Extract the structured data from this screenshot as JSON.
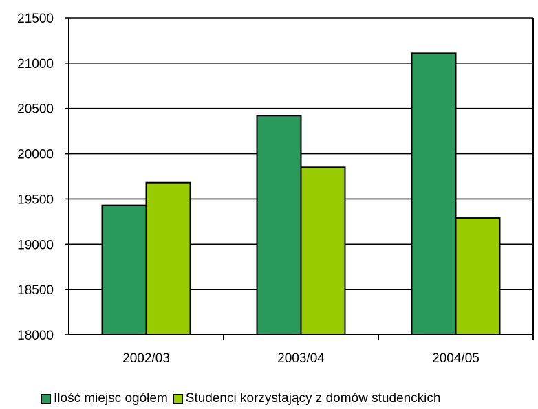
{
  "chart_data": {
    "type": "bar",
    "categories": [
      "2002/03",
      "2003/04",
      "2004/05"
    ],
    "series": [
      {
        "name": "Ilość miejsc ogółem",
        "values": [
          19430,
          20420,
          21110
        ],
        "color": "#2a9a5c"
      },
      {
        "name": "Studenci korzystający z domów studenckich",
        "values": [
          19680,
          19850,
          19290
        ],
        "color": "#99cc00"
      }
    ],
    "yticks": [
      "18000",
      "18500",
      "19000",
      "19500",
      "20000",
      "20500",
      "21000",
      "21500"
    ],
    "ylim": [
      18000,
      21500
    ],
    "grid": true,
    "legend_position": "bottom"
  }
}
